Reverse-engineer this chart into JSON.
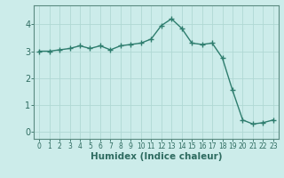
{
  "x": [
    0,
    1,
    2,
    3,
    4,
    5,
    6,
    7,
    8,
    9,
    10,
    11,
    12,
    13,
    14,
    15,
    16,
    17,
    18,
    19,
    20,
    21,
    22,
    23
  ],
  "y": [
    3.0,
    3.0,
    3.05,
    3.1,
    3.2,
    3.1,
    3.2,
    3.05,
    3.2,
    3.25,
    3.3,
    3.45,
    3.95,
    4.2,
    3.85,
    3.3,
    3.25,
    3.3,
    2.75,
    1.55,
    0.45,
    0.3,
    0.35,
    0.45
  ],
  "line_color": "#2e7d6e",
  "marker": "+",
  "marker_size": 4,
  "bg_color": "#ccecea",
  "grid_color": "#b0d8d4",
  "xlabel": "Humidex (Indice chaleur)",
  "xlim": [
    -0.5,
    23.5
  ],
  "ylim": [
    -0.25,
    4.7
  ],
  "yticks": [
    0,
    1,
    2,
    3,
    4
  ],
  "xticks": [
    0,
    1,
    2,
    3,
    4,
    5,
    6,
    7,
    8,
    9,
    10,
    11,
    12,
    13,
    14,
    15,
    16,
    17,
    18,
    19,
    20,
    21,
    22,
    23
  ],
  "tick_color": "#2e6b60",
  "axis_color": "#5a8a80"
}
